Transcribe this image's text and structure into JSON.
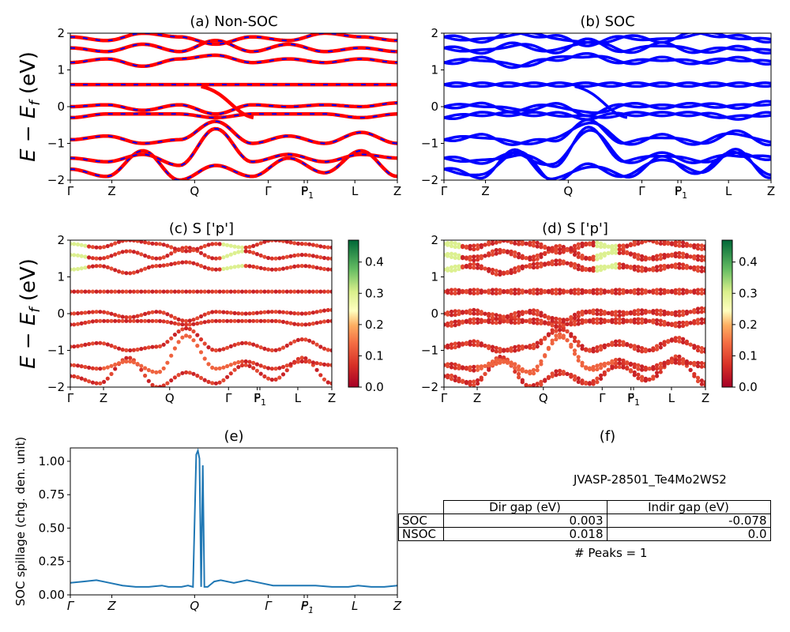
{
  "ylabel_text": "E − E",
  "ylabel_sub": "f",
  "ylabel_unit": " (eV)",
  "kpath": [
    {
      "name": "Γ",
      "x": 0.0
    },
    {
      "name": "Z",
      "x": 0.127
    },
    {
      "name": "Q",
      "x": 0.38
    },
    {
      "name": "Γ",
      "x": 0.605
    },
    {
      "name": "F",
      "x": 0.715
    },
    {
      "name": "P1",
      "x": 0.725
    },
    {
      "name": "L",
      "x": 0.87
    },
    {
      "name": "Z",
      "x": 1.0
    }
  ],
  "colorbar_ticks": [
    "0.0",
    "0.1",
    "0.2",
    "0.3",
    "0.4"
  ],
  "colors": {
    "red": "#ff0000",
    "blue": "#0000ff",
    "spill": "#1f77b4"
  },
  "panels": {
    "a": {
      "title": "(a) Non-SOC"
    },
    "b": {
      "title": "(b) SOC"
    },
    "c": {
      "title": "(c)  S ['p']"
    },
    "d": {
      "title": "(d) S ['p']"
    },
    "e": {
      "title": "(e)",
      "ylabel": "SOC spillage (chg. den. unit)"
    },
    "f": {
      "title": "(f)"
    }
  },
  "info": {
    "material": "JVASP-28501_Te4Mo2WS2",
    "table": {
      "headers": [
        "",
        "Dir gap (eV)",
        "Indir gap (eV)"
      ],
      "rows": [
        [
          "SOC",
          "0.003",
          "-0.078"
        ],
        [
          "NSOC",
          "0.018",
          "0.0"
        ]
      ]
    },
    "peaks": "# Peaks = 1"
  },
  "chart_data": [
    {
      "type": "line",
      "title": "(a) Non-SOC",
      "ylabel": "E − E_f (eV)",
      "ylim": [
        -2,
        2
      ],
      "x_ticks": [
        "Γ",
        "Z",
        "Q",
        "Γ",
        "F",
        "P1",
        "L",
        "Z"
      ],
      "series": [
        {
          "values": [
            -1.7,
            -1.9,
            -1.2,
            -2.0,
            -1.6,
            -1.9,
            -1.4,
            -1.8,
            -1.2,
            -1.9
          ]
        },
        {
          "values": [
            -1.4,
            -1.5,
            -1.3,
            -1.6,
            -0.6,
            -1.5,
            -1.3,
            -1.5,
            -1.3,
            -1.4
          ]
        },
        {
          "values": [
            -0.9,
            -0.8,
            -1.0,
            -0.9,
            -0.4,
            -1.0,
            -0.8,
            -1.0,
            -0.7,
            -1.0
          ]
        },
        {
          "values": [
            -0.3,
            -0.2,
            -0.2,
            -0.2,
            -0.3,
            -0.2,
            -0.2,
            -0.2,
            -0.3,
            -0.2
          ]
        },
        {
          "values": [
            0.0,
            0.05,
            -0.1,
            0.05,
            -0.2,
            0.05,
            0.0,
            0.05,
            0.0,
            0.1
          ]
        },
        {
          "values": [
            0.6,
            0.6,
            0.6,
            0.6,
            0.6,
            0.6,
            0.6,
            0.6,
            0.6,
            0.6
          ]
        },
        {
          "values": [
            1.2,
            1.3,
            1.1,
            1.3,
            1.4,
            1.2,
            1.3,
            1.2,
            1.3,
            1.2
          ]
        },
        {
          "values": [
            1.6,
            1.5,
            1.7,
            1.5,
            1.8,
            1.5,
            1.7,
            1.5,
            1.6,
            1.5
          ]
        },
        {
          "values": [
            1.9,
            1.8,
            2.0,
            1.9,
            1.7,
            1.9,
            1.8,
            2.0,
            1.9,
            1.8
          ]
        }
      ]
    },
    {
      "type": "line",
      "title": "(b) SOC",
      "ylim": [
        -2,
        2
      ],
      "x_ticks": [
        "Γ",
        "Z",
        "Q",
        "Γ",
        "F",
        "P1",
        "L",
        "Z"
      ]
    },
    {
      "type": "scatter",
      "title": "(c)  S ['p']",
      "ylabel": "E − E_f (eV)",
      "ylim": [
        -2,
        2
      ],
      "colorbar": [
        0.0,
        0.47
      ],
      "x_ticks": [
        "Γ",
        "Z",
        "Q",
        "Γ",
        "F",
        "P1",
        "L",
        "Z"
      ]
    },
    {
      "type": "scatter",
      "title": "(d) S ['p']",
      "ylim": [
        -2,
        2
      ],
      "colorbar": [
        0.0,
        0.47
      ],
      "x_ticks": [
        "Γ",
        "Z",
        "Q",
        "Γ",
        "F",
        "P1",
        "L",
        "Z"
      ]
    },
    {
      "type": "line",
      "title": "(e)",
      "ylabel": "SOC spillage (chg. den. unit)",
      "ylim": [
        0,
        1.1
      ],
      "y_ticks": [
        "0.00",
        "0.25",
        "0.50",
        "0.75",
        "1.00"
      ],
      "x_ticks": [
        "Γ",
        "Z",
        "Q",
        "Γ",
        "F",
        "P1",
        "L",
        "Z"
      ],
      "x": [
        0.0,
        0.04,
        0.08,
        0.12,
        0.16,
        0.2,
        0.24,
        0.28,
        0.3,
        0.34,
        0.36,
        0.375,
        0.385,
        0.39,
        0.395,
        0.4,
        0.405,
        0.41,
        0.415,
        0.42,
        0.43,
        0.44,
        0.46,
        0.5,
        0.54,
        0.58,
        0.62,
        0.66,
        0.7,
        0.75,
        0.8,
        0.85,
        0.88,
        0.92,
        0.96,
        1.0
      ],
      "values": [
        0.09,
        0.1,
        0.11,
        0.09,
        0.07,
        0.06,
        0.06,
        0.07,
        0.06,
        0.06,
        0.07,
        0.06,
        1.05,
        1.08,
        1.02,
        0.06,
        0.97,
        0.06,
        0.06,
        0.06,
        0.08,
        0.1,
        0.11,
        0.09,
        0.11,
        0.09,
        0.07,
        0.07,
        0.07,
        0.07,
        0.06,
        0.06,
        0.07,
        0.06,
        0.06,
        0.07
      ]
    }
  ]
}
